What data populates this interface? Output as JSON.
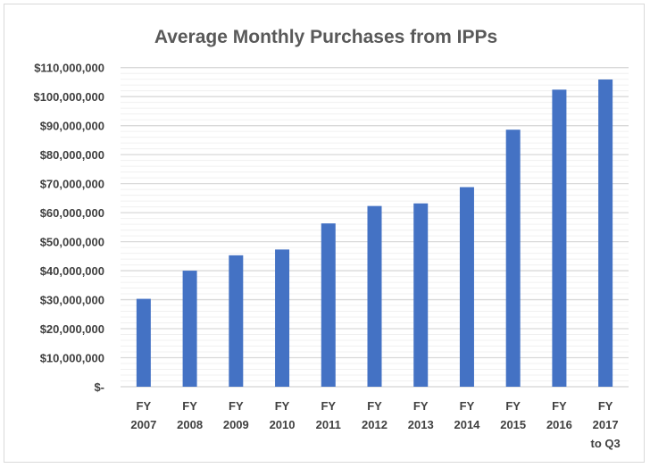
{
  "chart_data": {
    "type": "bar",
    "title": "Average Monthly Purchases from IPPs",
    "xlabel": "",
    "ylabel": "",
    "categories": [
      [
        "FY",
        "2007"
      ],
      [
        "FY",
        "2008"
      ],
      [
        "FY",
        "2009"
      ],
      [
        "FY",
        "2010"
      ],
      [
        "FY",
        "2011"
      ],
      [
        "FY",
        "2012"
      ],
      [
        "FY",
        "2013"
      ],
      [
        "FY",
        "2014"
      ],
      [
        "FY",
        "2015"
      ],
      [
        "FY",
        "2016"
      ],
      [
        "FY",
        "2017",
        "to Q3"
      ]
    ],
    "values": [
      30300000,
      40000000,
      45300000,
      47300000,
      56300000,
      62300000,
      63200000,
      68800000,
      88600000,
      102400000,
      105900000
    ],
    "ylim": [
      0,
      110000000
    ],
    "yticks": [
      0,
      10000000,
      20000000,
      30000000,
      40000000,
      50000000,
      60000000,
      70000000,
      80000000,
      90000000,
      100000000,
      110000000
    ],
    "ytick_labels": [
      "$-",
      "$10,000,000",
      "$20,000,000",
      "$30,000,000",
      "$40,000,000",
      "$50,000,000",
      "$60,000,000",
      "$70,000,000",
      "$80,000,000",
      "$90,000,000",
      "$100,000,000",
      "$110,000,000"
    ],
    "grid": {
      "major": true,
      "minor_step": 2000000
    },
    "legend": "none",
    "bar_color": "#4472c4"
  }
}
